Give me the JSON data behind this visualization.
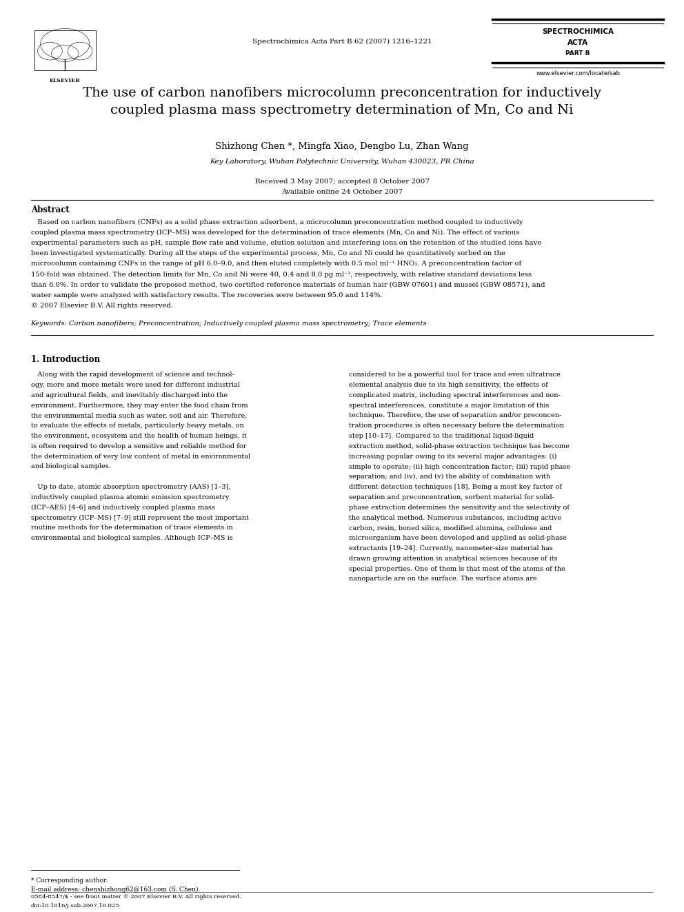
{
  "background_color": "#ffffff",
  "page_width": 9.92,
  "page_height": 13.23,
  "header": {
    "elsevier_text": "ELSEVIER",
    "journal_center": "Spectrochimica Acta Part B 62 (2007) 1216–1221",
    "journal_name_right": "SPECTROCHIMICA\nACTA",
    "journal_part": "PART B",
    "website": "www.elsevier.com/locate/sab"
  },
  "title": "The use of carbon nanofibers microcolumn preconcentration for inductively\ncoupled plasma mass spectrometry determination of Mn, Co and Ni",
  "authors": "Shizhong Chen *, Mingfa Xiao, Dengbo Lu, Zhan Wang",
  "affiliation": "Key Laboratory, Wuhan Polytechnic University, Wuhan 430023, PR China",
  "received": "Received 3 May 2007; accepted 8 October 2007",
  "available": "Available online 24 October 2007",
  "abstract_title": "Abstract",
  "keywords": "Keywords: Carbon nanofibers; Preconcentration; Inductively coupled plasma mass spectrometry; Trace elements",
  "section1_title": "1. Introduction",
  "footnote_line1": "* Corresponding author.",
  "footnote_line2": "E-mail address: chenshizhong62@163.com (S. Chen).",
  "bottom_line1": "0584-8547/$ - see front matter © 2007 Elsevier B.V. All rights reserved.",
  "bottom_line2": "doi:10.1016/j.sab.2007.10.025",
  "abstract_lines": [
    "   Based on carbon nanofibers (CNFs) as a solid phase extraction adsorbent, a microcolumn preconcentration method coupled to inductively",
    "coupled plasma mass spectrometry (ICP–MS) was developed for the determination of trace elements (Mn, Co and Ni). The effect of various",
    "experimental parameters such as pH, sample flow rate and volume, elution solution and interfering ions on the retention of the studied ions have",
    "been investigated systematically. During all the steps of the experimental process, Mn, Co and Ni could be quantitatively sorbed on the",
    "microcolumn containing CNFs in the range of pH 6.0–9.0, and then eluted completely with 0.5 mol ml⁻¹ HNO₃. A preconcentration factor of",
    "150-fold was obtained. The detection limits for Mn, Co and Ni were 40, 0.4 and 8.0 pg ml⁻¹, respectively, with relative standard deviations less",
    "than 6.0%. In order to validate the proposed method, two certified reference materials of human hair (GBW 07601) and mussel (GBW 08571), and",
    "water sample were analyzed with satisfactory results. The recoveries were between 95.0 and 114%.",
    "© 2007 Elsevier B.V. All rights reserved."
  ],
  "intro_lines_col1": [
    "   Along with the rapid development of science and technol-",
    "ogy, more and more metals were used for different industrial",
    "and agricultural fields, and inevitably discharged into the",
    "environment. Furthermore, they may enter the food chain from",
    "the environmental media such as water, soil and air. Therefore,",
    "to evaluate the effects of metals, particularly heavy metals, on",
    "the environment, ecosystem and the health of human beings, it",
    "is often required to develop a sensitive and reliable method for",
    "the determination of very low content of metal in environmental",
    "and biological samples.",
    "",
    "   Up to date, atomic absorption spectrometry (AAS) [1–3],",
    "inductively coupled plasma atomic emission spectrometry",
    "(ICP–AES) [4–6] and inductively coupled plasma mass",
    "spectrometry (ICP–MS) [7–9] still represent the most important",
    "routine methods for the determination of trace elements in",
    "environmental and biological samples. Although ICP–MS is"
  ],
  "intro_lines_col2": [
    "considered to be a powerful tool for trace and even ultratrace",
    "elemental analysis due to its high sensitivity, the effects of",
    "complicated matrix, including spectral interferences and non-",
    "spectral interferences, constitute a major limitation of this",
    "technique. Therefore, the use of separation and/or preconcen-",
    "tration procedures is often necessary before the determination",
    "step [10–17]. Compared to the traditional liquid-liquid",
    "extraction method, solid-phase extraction technique has become",
    "increasing popular owing to its several major advantages: (i)",
    "simple to operate; (ii) high concentration factor; (iii) rapid phase",
    "separation; and (iv), and (v) the ability of combination with",
    "different detection techniques [18]. Being a most key factor of",
    "separation and preconcentration, sorbent material for solid-",
    "phase extraction determines the sensitivity and the selectivity of",
    "the analytical method. Numerous substances, including active",
    "carbon, resin, boned silica, modified alumina, cellulose and",
    "microorganism have been developed and applied as solid-phase",
    "extractants [19–24]. Currently, nanometer-size material has",
    "drawn growing attention in analytical sciences because of its",
    "special properties. One of them is that most of the atoms of the",
    "nanoparticle are on the surface. The surface atoms are"
  ]
}
